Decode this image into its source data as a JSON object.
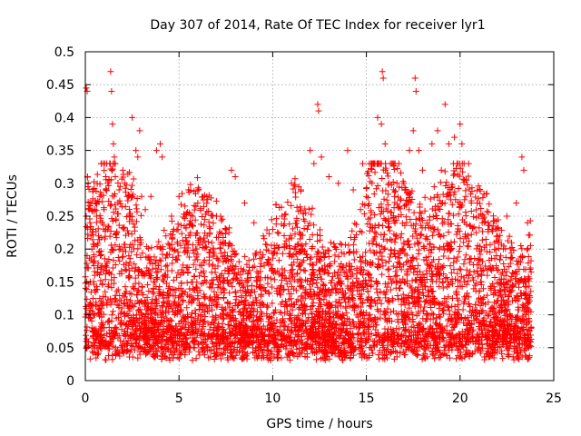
{
  "chart_data": {
    "type": "scatter",
    "title": "Day 307 of 2014, Rate Of TEC Index for receiver lyr1",
    "xlabel": "GPS time / hours",
    "ylabel": "ROTI / TECUs",
    "xlim": [
      0,
      25
    ],
    "ylim": [
      0,
      0.5
    ],
    "x_ticks": [
      "0",
      "5",
      "10",
      "15",
      "20",
      "25"
    ],
    "y_ticks": [
      "0",
      "0.05",
      "0.1",
      "0.15",
      "0.2",
      "0.25",
      "0.3",
      "0.35",
      "0.4",
      "0.45",
      "0.5"
    ],
    "grid": true,
    "marker": "plus",
    "point_color": "#ff0000",
    "series": [
      {
        "points": [
          [
            0.05,
            0.445
          ],
          [
            0.1,
            0.44
          ],
          [
            0.12,
            0.31
          ],
          [
            0.15,
            0.3
          ],
          [
            0.2,
            0.26
          ],
          [
            0.25,
            0.24
          ],
          [
            0.3,
            0.22
          ],
          [
            0.35,
            0.2
          ],
          [
            0.4,
            0.18
          ],
          [
            0.5,
            0.16
          ],
          [
            0.55,
            0.27
          ],
          [
            0.6,
            0.25
          ],
          [
            0.7,
            0.22
          ],
          [
            0.8,
            0.19
          ],
          [
            0.9,
            0.24
          ],
          [
            1.0,
            0.26
          ],
          [
            1.1,
            0.29
          ],
          [
            1.2,
            0.3
          ],
          [
            1.3,
            0.33
          ],
          [
            1.35,
            0.47
          ],
          [
            1.4,
            0.44
          ],
          [
            1.45,
            0.39
          ],
          [
            1.5,
            0.36
          ],
          [
            1.55,
            0.34
          ],
          [
            1.6,
            0.31
          ],
          [
            1.8,
            0.29
          ],
          [
            2.0,
            0.32
          ],
          [
            2.1,
            0.3
          ],
          [
            2.3,
            0.28
          ],
          [
            2.5,
            0.4
          ],
          [
            2.7,
            0.35
          ],
          [
            2.8,
            0.34
          ],
          [
            2.9,
            0.38
          ],
          [
            3.0,
            0.28
          ],
          [
            3.2,
            0.26
          ],
          [
            3.5,
            0.28
          ],
          [
            3.8,
            0.35
          ],
          [
            4.0,
            0.36
          ],
          [
            4.1,
            0.34
          ],
          [
            4.3,
            0.22
          ],
          [
            4.6,
            0.25
          ],
          [
            5.0,
            0.28
          ],
          [
            5.5,
            0.29
          ],
          [
            6.0,
            0.27
          ],
          [
            6.5,
            0.22
          ],
          [
            7.0,
            0.25
          ],
          [
            7.5,
            0.23
          ],
          [
            7.8,
            0.32
          ],
          [
            8.0,
            0.31
          ],
          [
            8.5,
            0.27
          ],
          [
            9.0,
            0.24
          ],
          [
            9.5,
            0.22
          ],
          [
            10.0,
            0.23
          ],
          [
            10.5,
            0.25
          ],
          [
            11.0,
            0.3
          ],
          [
            11.5,
            0.29
          ],
          [
            12.0,
            0.35
          ],
          [
            12.2,
            0.33
          ],
          [
            12.4,
            0.42
          ],
          [
            12.45,
            0.41
          ],
          [
            12.6,
            0.34
          ],
          [
            13.0,
            0.31
          ],
          [
            13.5,
            0.3
          ],
          [
            14.0,
            0.35
          ],
          [
            14.3,
            0.29
          ],
          [
            14.8,
            0.33
          ],
          [
            15.0,
            0.28
          ],
          [
            15.3,
            0.3
          ],
          [
            15.6,
            0.4
          ],
          [
            15.8,
            0.39
          ],
          [
            15.85,
            0.47
          ],
          [
            15.9,
            0.46
          ],
          [
            16.0,
            0.36
          ],
          [
            16.2,
            0.3
          ],
          [
            16.5,
            0.28
          ],
          [
            17.0,
            0.3
          ],
          [
            17.3,
            0.35
          ],
          [
            17.5,
            0.38
          ],
          [
            17.6,
            0.46
          ],
          [
            17.65,
            0.44
          ],
          [
            17.8,
            0.35
          ],
          [
            18.0,
            0.32
          ],
          [
            18.5,
            0.36
          ],
          [
            18.8,
            0.38
          ],
          [
            19.0,
            0.32
          ],
          [
            19.2,
            0.42
          ],
          [
            19.4,
            0.36
          ],
          [
            19.7,
            0.37
          ],
          [
            20.0,
            0.39
          ],
          [
            20.1,
            0.36
          ],
          [
            20.3,
            0.28
          ],
          [
            20.6,
            0.27
          ],
          [
            21.0,
            0.25
          ],
          [
            21.5,
            0.24
          ],
          [
            22.0,
            0.22
          ],
          [
            22.5,
            0.25
          ],
          [
            23.0,
            0.27
          ],
          [
            23.3,
            0.34
          ],
          [
            23.4,
            0.32
          ],
          [
            23.6,
            0.24
          ]
        ]
      }
    ]
  }
}
